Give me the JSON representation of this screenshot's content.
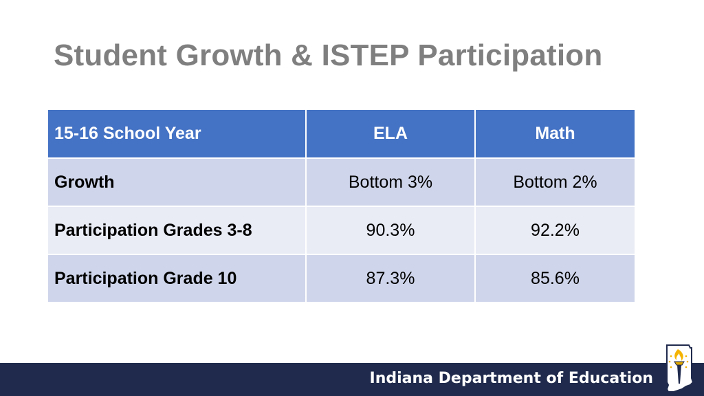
{
  "slide": {
    "title": "Student Growth & ISTEP Participation"
  },
  "table": {
    "headers": [
      "15-16 School Year",
      "ELA",
      "Math"
    ],
    "rows": [
      {
        "label": "Growth",
        "ela": "Bottom 3%",
        "math": "Bottom 2%"
      },
      {
        "label": "Participation Grades 3-8",
        "ela": "90.3%",
        "math": "92.2%"
      },
      {
        "label": "Participation Grade 10",
        "ela": "87.3%",
        "math": "85.6%"
      }
    ]
  },
  "footer": {
    "org_name": "Indiana Department of Education",
    "logo_icon": "indiana-torch-logo-icon"
  },
  "colors": {
    "header_blue": "#4472c4",
    "band_dark": "#cfd5ea",
    "band_light": "#e9ebf5",
    "footer_navy": "#1f2a4c",
    "title_gray": "#7f7f7f"
  }
}
